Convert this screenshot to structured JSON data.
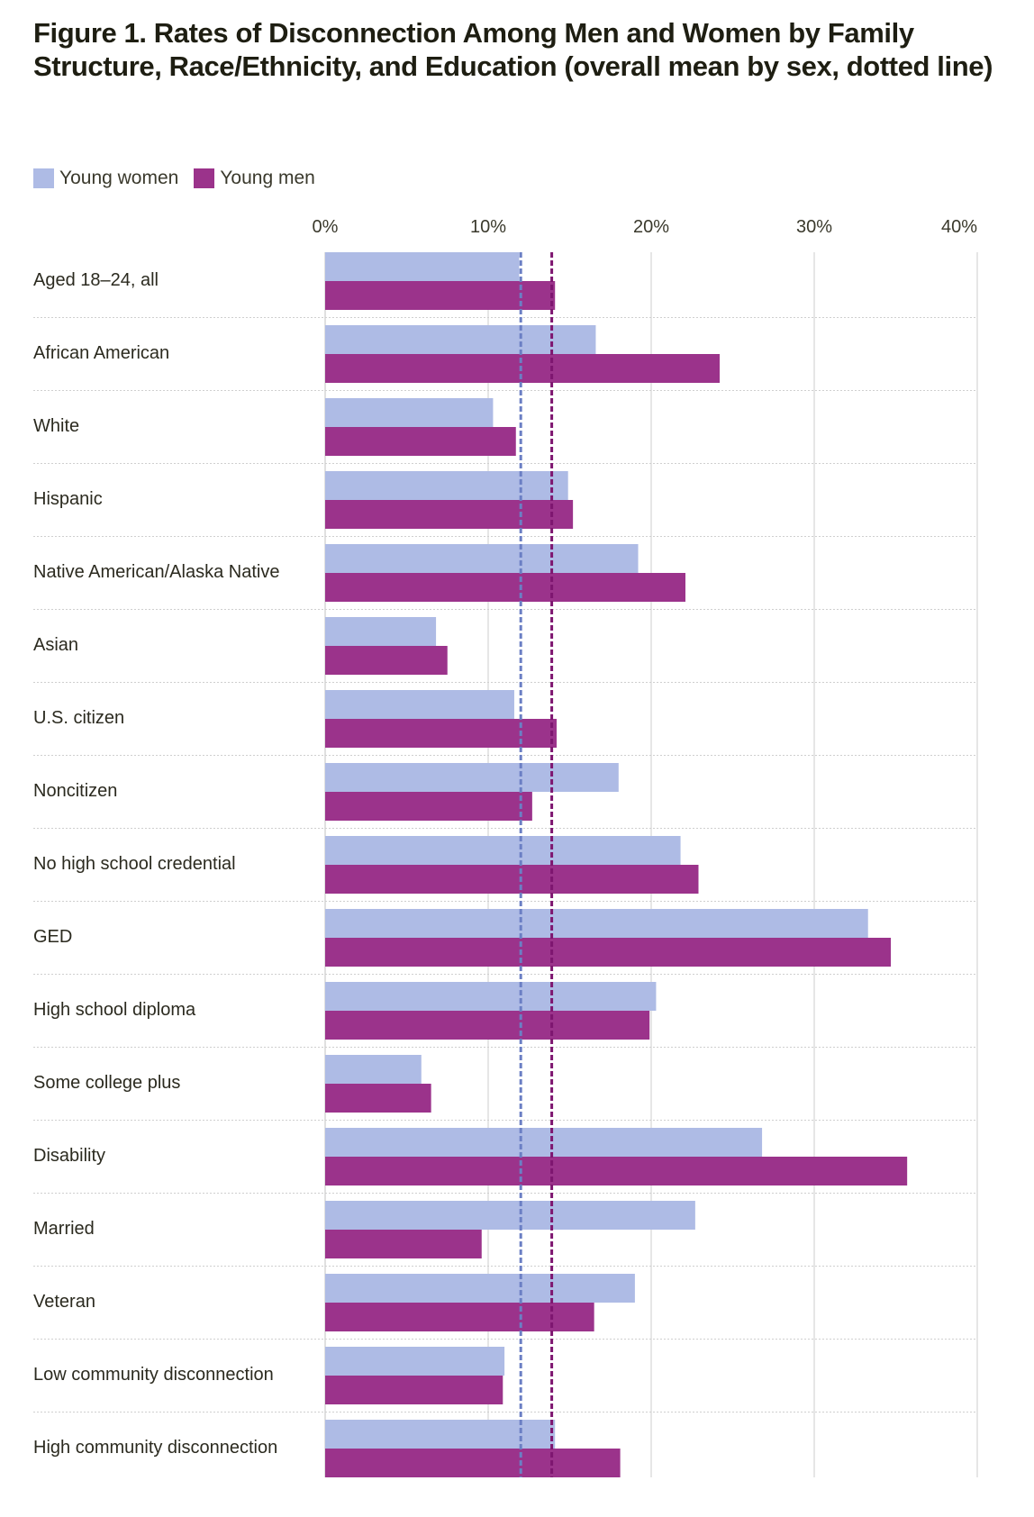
{
  "title": {
    "prefix": "Figure 1.",
    "text": " Rates of Disconnection Among Men and Women by Family Structure, Race/Ethnicity, and Education (overall mean by sex, dotted line)"
  },
  "legend": [
    {
      "label": "Young women",
      "color": "#aebbe5"
    },
    {
      "label": "Young men",
      "color": "#9b338b"
    }
  ],
  "chart_data": {
    "type": "bar",
    "orientation": "horizontal",
    "title": "Figure 1. Rates of Disconnection Among Men and Women by Family Structure, Race/Ethnicity, and Education (overall mean by sex, dotted line)",
    "xlabel": "",
    "ylabel": "",
    "xlim": [
      0,
      40
    ],
    "x_ticks": [
      0,
      10,
      20,
      30,
      40
    ],
    "x_tick_labels": [
      "0%",
      "10%",
      "20%",
      "30%",
      "40%"
    ],
    "x_axis_position": "top",
    "grid": true,
    "legend_position": "top-left",
    "categories": [
      "Aged 18–24, all",
      "African American",
      "White",
      "Hispanic",
      "Native American/Alaska Native",
      "Asian",
      "U.S. citizen",
      "Noncitizen",
      "No high school credential",
      "GED",
      "High school diploma",
      "Some college plus",
      "Disability",
      "Married",
      "Veteran",
      "Low community disconnection",
      "High community disconnection"
    ],
    "series": [
      {
        "name": "Young women",
        "color": "#aebbe5",
        "values": [
          11.9,
          16.6,
          10.3,
          14.9,
          19.2,
          6.8,
          11.6,
          18.0,
          21.8,
          33.3,
          20.3,
          5.9,
          26.8,
          22.7,
          19.0,
          11.0,
          14.1
        ]
      },
      {
        "name": "Young men",
        "color": "#9b338b",
        "values": [
          14.1,
          24.2,
          11.7,
          15.2,
          22.1,
          7.5,
          14.2,
          12.7,
          22.9,
          34.7,
          19.9,
          6.5,
          35.7,
          9.6,
          16.5,
          10.9,
          18.1
        ]
      }
    ],
    "reference_lines": [
      {
        "name": "Overall mean, young women",
        "value": 12.0,
        "color": "#6b7fc4",
        "style": "dotted"
      },
      {
        "name": "Overall mean, young men",
        "value": 13.9,
        "color": "#7e1670",
        "style": "dotted"
      }
    ]
  }
}
